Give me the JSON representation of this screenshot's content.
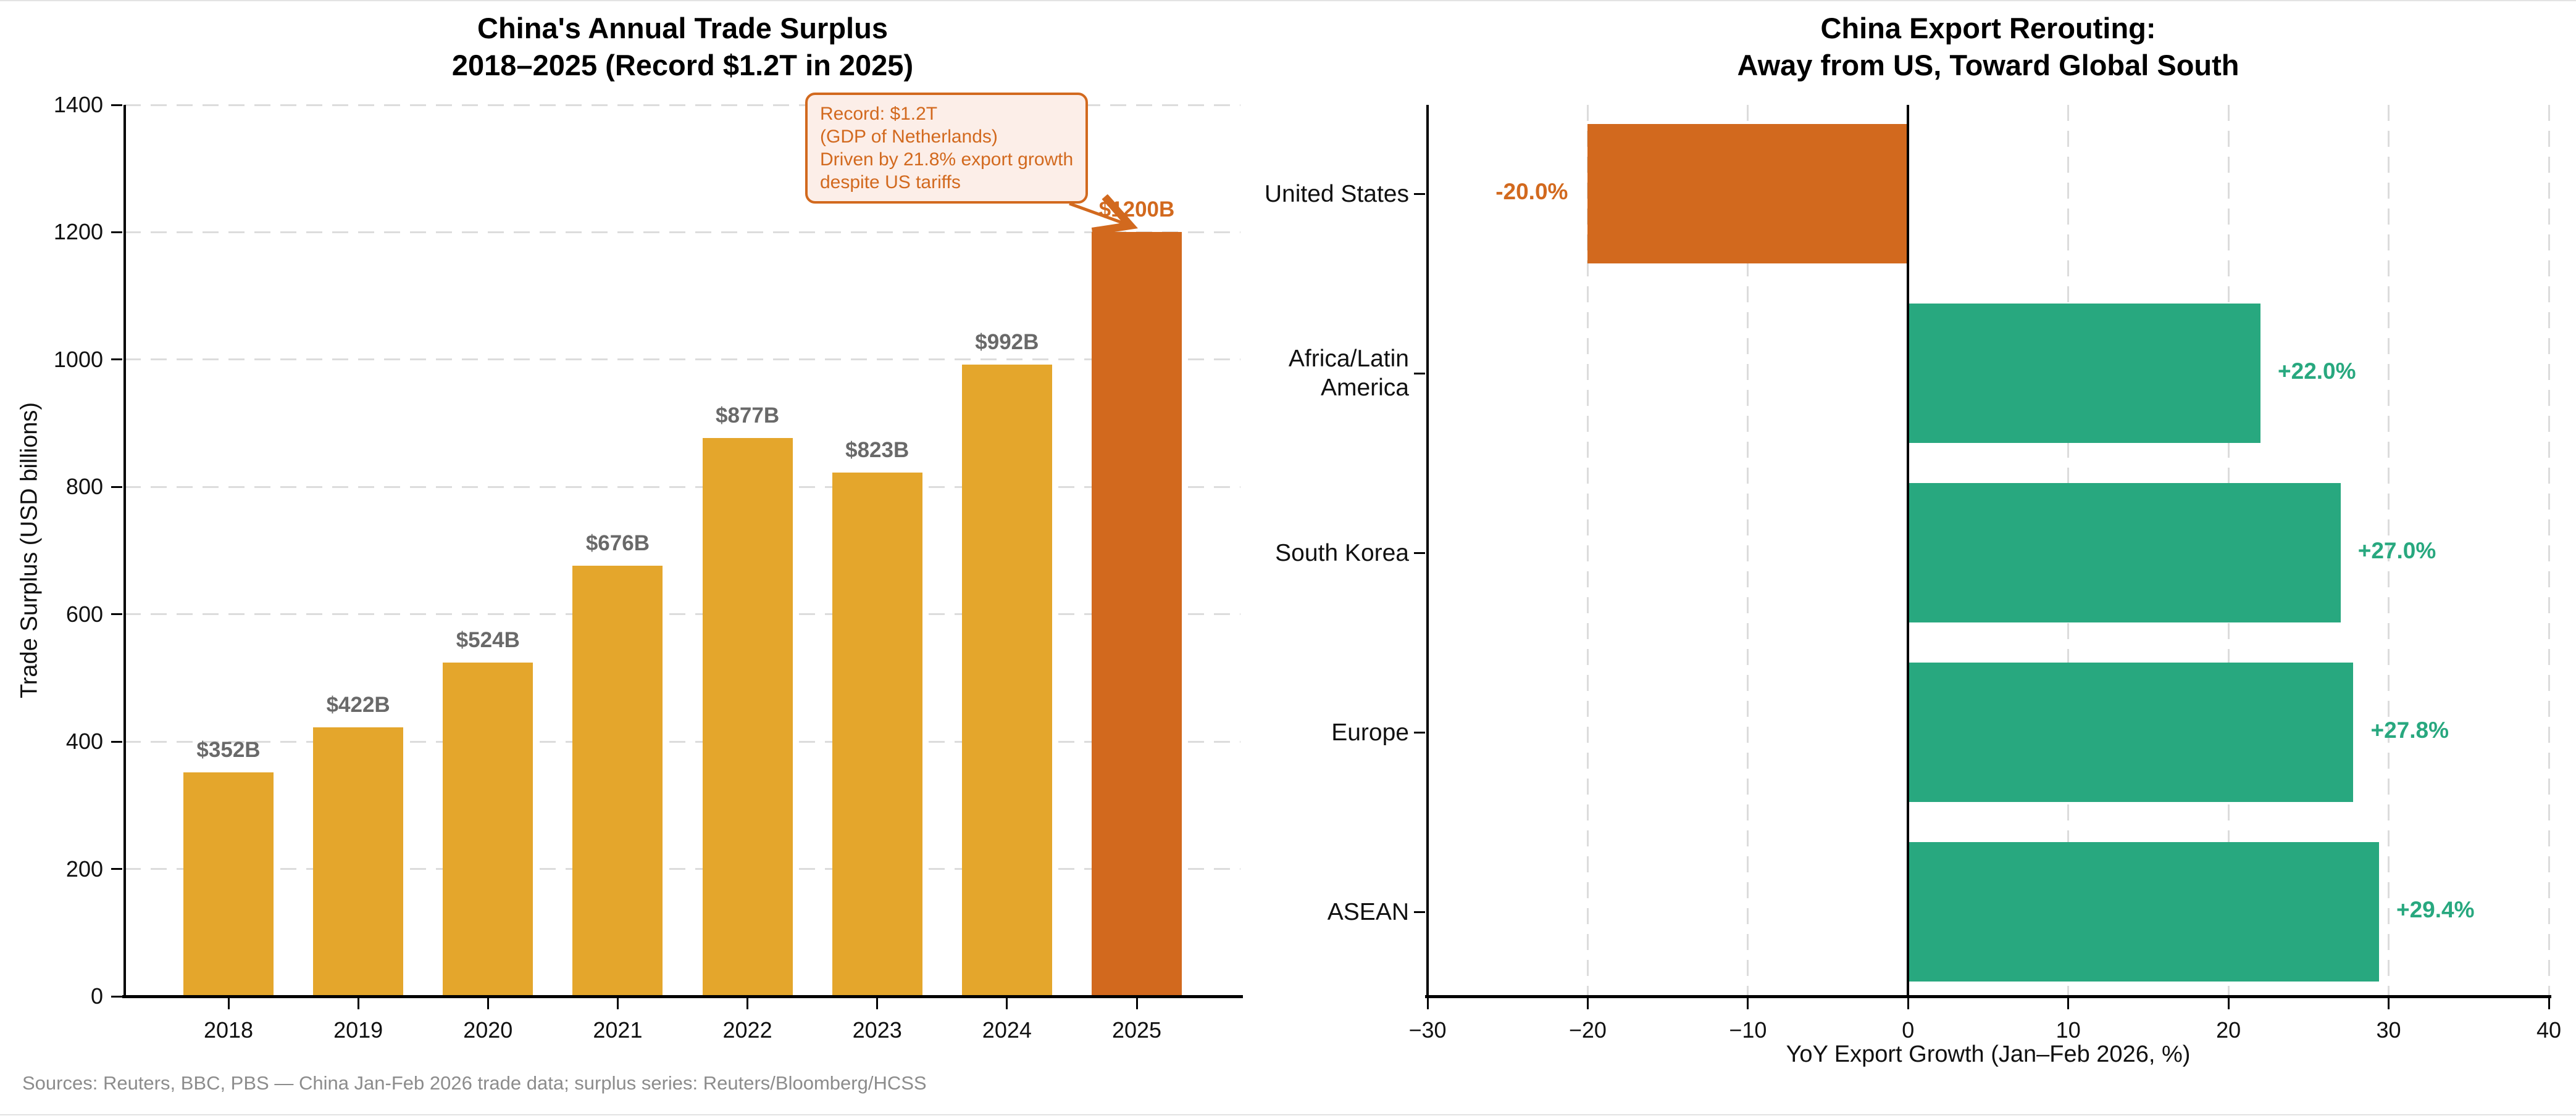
{
  "page": {
    "footer": "Sources: Reuters, BBC, PBS — China Jan-Feb 2026 trade data; surplus series: Reuters/Bloomberg/HCSS"
  },
  "colors": {
    "gold": "#E4A62C",
    "orange": "#D2691E",
    "green": "#28A87F",
    "grid": "#DCDCDC",
    "axis": "#000000",
    "tick_text": "#111111",
    "label_gray": "#696969",
    "footer_gray": "#8C8C8C",
    "annotation_bg": "#FCEEE8"
  },
  "chart_data": [
    {
      "type": "bar",
      "title": "China's Annual Trade Surplus\n2018–2025 (Record $1.2T in 2025)",
      "ylabel": "Trade Surplus (USD billions)",
      "xlabel": "",
      "categories": [
        "2018",
        "2019",
        "2020",
        "2021",
        "2022",
        "2023",
        "2024",
        "2025"
      ],
      "values": [
        352,
        422,
        524,
        676,
        877,
        823,
        992,
        1200
      ],
      "bar_labels": [
        "$352B",
        "$422B",
        "$524B",
        "$676B",
        "$877B",
        "$823B",
        "$992B",
        "$1200B"
      ],
      "ylim": [
        0,
        1400
      ],
      "yticks": [
        0,
        200,
        400,
        600,
        800,
        1000,
        1200,
        1400
      ],
      "highlight_index": 7,
      "grid": "horizontal-dashed",
      "legend": "none",
      "annotation": {
        "text": "Record: $1.2T\n(GDP of Netherlands)\nDriven by 21.8% export growth\ndespite US tariffs"
      }
    },
    {
      "type": "bar",
      "orientation": "horizontal",
      "title": "China Export Rerouting:\nAway from US, Toward Global South",
      "xlabel": "YoY Export Growth (Jan–Feb 2026, %)",
      "ylabel": "",
      "categories": [
        "United States",
        "Africa/Latin\nAmerica",
        "South Korea",
        "Europe",
        "ASEAN"
      ],
      "values": [
        -20.0,
        22.0,
        27.0,
        27.8,
        29.4
      ],
      "bar_labels": [
        "-20.0%",
        "+22.0%",
        "+27.0%",
        "+27.8%",
        "+29.4%"
      ],
      "xlim": [
        -30,
        40
      ],
      "xticks": [
        -30,
        -20,
        -10,
        0,
        10,
        20,
        30,
        40
      ],
      "xtick_labels": [
        "−30",
        "−20",
        "−10",
        "0",
        "10",
        "20",
        "30",
        "40"
      ],
      "grid": "vertical-dashed",
      "legend": "none",
      "zero_line": true
    }
  ]
}
